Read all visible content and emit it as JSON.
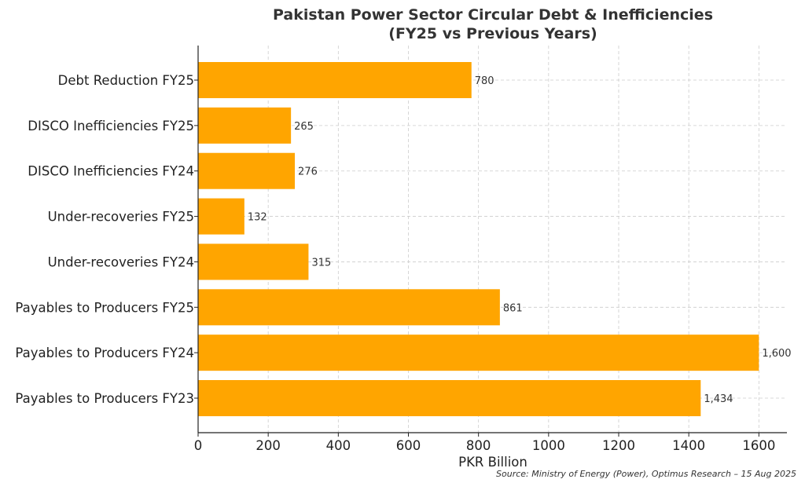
{
  "chart_data": {
    "type": "bar",
    "orientation": "horizontal",
    "title_line1": "Pakistan Power Sector Circular Debt & Inefficiencies",
    "title_line2": "(FY25 vs Previous Years)",
    "xlabel": "PKR Billion",
    "ylabel": "",
    "xlim": [
      0,
      1680
    ],
    "xticks": [
      0,
      200,
      400,
      600,
      800,
      1000,
      1200,
      1400,
      1600
    ],
    "grid": true,
    "bar_color": "#FFA500",
    "categories": [
      "Debt Reduction FY25",
      "DISCO Inefficiencies FY25",
      "DISCO Inefficiencies FY24",
      "Under-recoveries FY25",
      "Under-recoveries FY24",
      "Payables to Producers FY25",
      "Payables to Producers FY24",
      "Payables to Producers FY23"
    ],
    "values": [
      780,
      265,
      276,
      132,
      315,
      861,
      1600,
      1434
    ],
    "value_labels": [
      "780",
      "265",
      "276",
      "132",
      "315",
      "861",
      "1,600",
      "1,434"
    ],
    "source": "Source: Ministry of Energy (Power), Optimus Research – 15 Aug 2025"
  }
}
